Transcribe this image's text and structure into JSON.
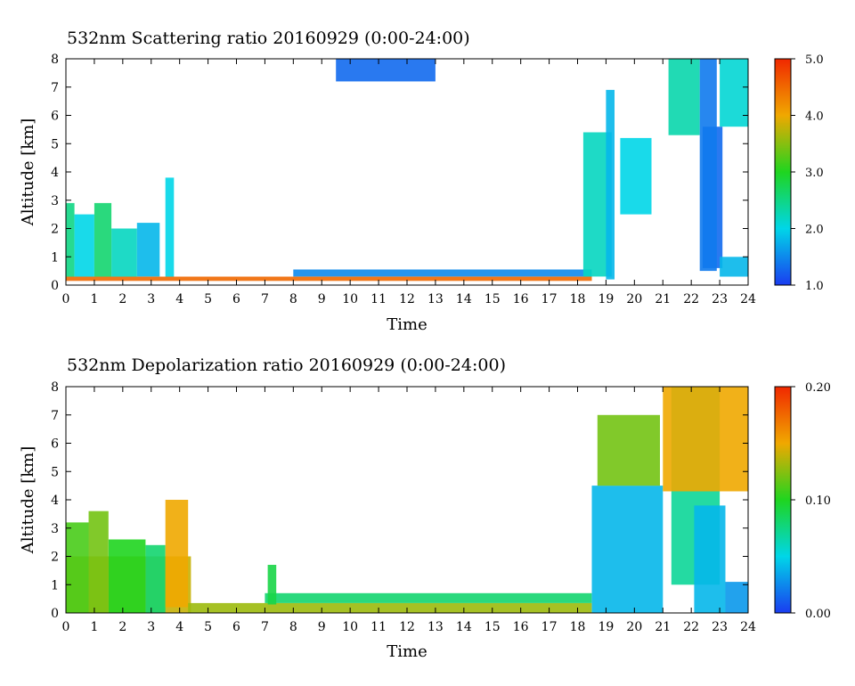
{
  "chart_data": [
    {
      "type": "heatmap",
      "title": "532nm Scattering ratio  20160929 (0:00-24:00)",
      "xlabel": "Time",
      "ylabel": "Altitude [km]",
      "xlim": [
        0,
        24
      ],
      "ylim": [
        0,
        8
      ],
      "x_ticks": [
        "0",
        "1",
        "2",
        "3",
        "4",
        "5",
        "6",
        "7",
        "8",
        "9",
        "10",
        "11",
        "12",
        "13",
        "14",
        "15",
        "16",
        "17",
        "18",
        "19",
        "20",
        "21",
        "22",
        "23",
        "24"
      ],
      "y_ticks": [
        "0",
        "1",
        "2",
        "3",
        "4",
        "5",
        "6",
        "7",
        "8"
      ],
      "colorbar": {
        "min": 1.0,
        "max": 5.0,
        "tick_labels": [
          "1.0",
          "2.0",
          "3.0",
          "4.0",
          "5.0"
        ]
      },
      "features": [
        {
          "t0": 0.0,
          "t1": 0.3,
          "z0": 0.3,
          "z1": 2.9,
          "value": 2.5
        },
        {
          "t0": 0.3,
          "t1": 1.0,
          "z0": 0.3,
          "z1": 2.5,
          "value": 2.0
        },
        {
          "t0": 1.0,
          "t1": 1.6,
          "z0": 0.3,
          "z1": 2.9,
          "value": 2.6
        },
        {
          "t0": 1.6,
          "t1": 2.5,
          "z0": 0.3,
          "z1": 2.0,
          "value": 2.2
        },
        {
          "t0": 2.5,
          "t1": 3.3,
          "z0": 0.3,
          "z1": 2.2,
          "value": 1.8
        },
        {
          "t0": 3.5,
          "t1": 3.8,
          "z0": 0.3,
          "z1": 3.8,
          "value": 2.0
        },
        {
          "t0": 0.0,
          "t1": 18.5,
          "z0": 0.15,
          "z1": 0.3,
          "value": 4.5
        },
        {
          "t0": 8.0,
          "t1": 18.5,
          "z0": 0.3,
          "z1": 0.55,
          "value": 1.5
        },
        {
          "t0": 18.2,
          "t1": 19.2,
          "z0": 0.3,
          "z1": 5.4,
          "value": 2.2
        },
        {
          "t0": 19.5,
          "t1": 20.6,
          "z0": 2.5,
          "z1": 5.2,
          "value": 2.0
        },
        {
          "t0": 19.0,
          "t1": 19.3,
          "z0": 0.2,
          "z1": 6.9,
          "value": 1.8
        },
        {
          "t0": 21.2,
          "t1": 22.3,
          "z0": 5.3,
          "z1": 8.0,
          "value": 2.3
        },
        {
          "t0": 22.4,
          "t1": 23.1,
          "z0": 0.6,
          "z1": 5.6,
          "value": 1.3
        },
        {
          "t0": 22.3,
          "t1": 22.9,
          "z0": 0.5,
          "z1": 8.0,
          "value": 1.4
        },
        {
          "t0": 23.0,
          "t1": 24.0,
          "z0": 5.6,
          "z1": 8.0,
          "value": 2.1
        },
        {
          "t0": 23.0,
          "t1": 24.0,
          "z0": 0.3,
          "z1": 1.0,
          "value": 1.8
        },
        {
          "t0": 9.5,
          "t1": 13.0,
          "z0": 7.2,
          "z1": 8.0,
          "value": 1.3
        }
      ]
    },
    {
      "type": "heatmap",
      "title": "532nm Depolarization ratio  20160929 (0:00-24:00)",
      "xlabel": "Time",
      "ylabel": "Altitude [km]",
      "xlim": [
        0,
        24
      ],
      "ylim": [
        0,
        8
      ],
      "x_ticks": [
        "0",
        "1",
        "2",
        "3",
        "4",
        "5",
        "6",
        "7",
        "8",
        "9",
        "10",
        "11",
        "12",
        "13",
        "14",
        "15",
        "16",
        "17",
        "18",
        "19",
        "20",
        "21",
        "22",
        "23",
        "24"
      ],
      "y_ticks": [
        "0",
        "1",
        "2",
        "3",
        "4",
        "5",
        "6",
        "7",
        "8"
      ],
      "colorbar": {
        "min": 0.0,
        "max": 0.2,
        "tick_labels": [
          "0.00",
          "0.10",
          "0.20"
        ]
      },
      "features": [
        {
          "t0": 0.0,
          "t1": 4.4,
          "z0": 0.0,
          "z1": 2.0,
          "value": 0.14
        },
        {
          "t0": 0.0,
          "t1": 0.8,
          "z0": 0.0,
          "z1": 3.2,
          "value": 0.11
        },
        {
          "t0": 0.8,
          "t1": 1.5,
          "z0": 0.0,
          "z1": 3.6,
          "value": 0.12
        },
        {
          "t0": 1.5,
          "t1": 2.8,
          "z0": 0.0,
          "z1": 2.6,
          "value": 0.1
        },
        {
          "t0": 2.8,
          "t1": 3.5,
          "z0": 0.0,
          "z1": 2.4,
          "value": 0.08
        },
        {
          "t0": 3.5,
          "t1": 4.3,
          "z0": 0.2,
          "z1": 4.0,
          "value": 0.15
        },
        {
          "t0": 4.3,
          "t1": 18.5,
          "z0": 0.0,
          "z1": 0.35,
          "value": 0.13
        },
        {
          "t0": 7.0,
          "t1": 18.5,
          "z0": 0.35,
          "z1": 0.7,
          "value": 0.08
        },
        {
          "t0": 7.1,
          "t1": 7.4,
          "z0": 0.3,
          "z1": 1.7,
          "value": 0.09
        },
        {
          "t0": 18.5,
          "t1": 21.0,
          "z0": 0.0,
          "z1": 4.5,
          "value": 0.04
        },
        {
          "t0": 18.7,
          "t1": 20.9,
          "z0": 4.5,
          "z1": 7.0,
          "value": 0.12
        },
        {
          "t0": 21.3,
          "t1": 23.0,
          "z0": 1.0,
          "z1": 8.0,
          "value": 0.07
        },
        {
          "t0": 21.0,
          "t1": 24.0,
          "z0": 4.3,
          "z1": 8.0,
          "value": 0.15
        },
        {
          "t0": 22.1,
          "t1": 23.2,
          "z0": 0.0,
          "z1": 3.8,
          "value": 0.04
        },
        {
          "t0": 23.2,
          "t1": 24.0,
          "z0": 0.0,
          "z1": 1.1,
          "value": 0.03
        }
      ]
    }
  ]
}
